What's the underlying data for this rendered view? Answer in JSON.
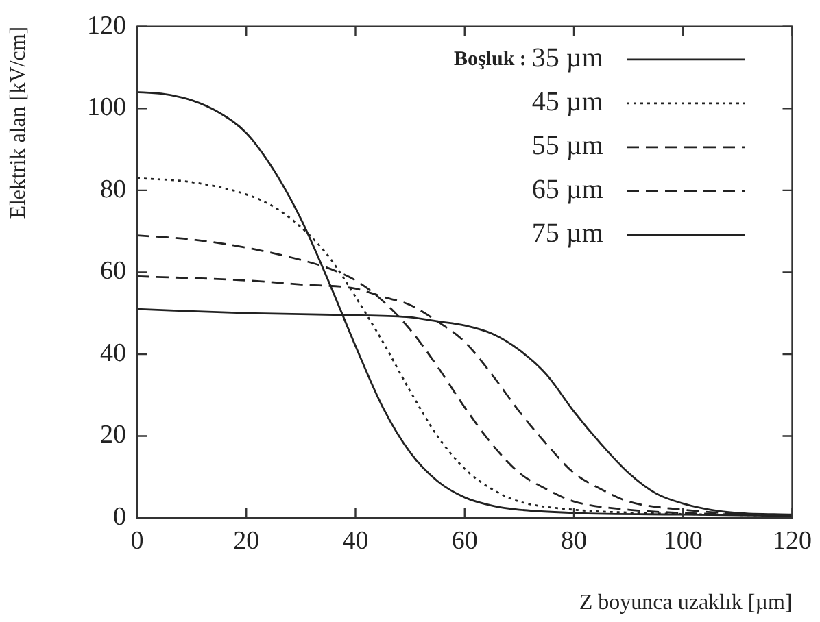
{
  "chart_data": {
    "type": "line",
    "xlabel": "Z boyunca uzaklık [µm]",
    "ylabel": "Elektrik alan [kV/cm]",
    "legend_title": "Boşluk :",
    "legend": "top right",
    "grid": false,
    "marker": "none",
    "xlim": [
      0,
      120
    ],
    "xticks": [
      0,
      20,
      40,
      60,
      80,
      100,
      120
    ],
    "ylim": [
      0,
      120
    ],
    "yticks": [
      0,
      20,
      40,
      60,
      80,
      100,
      120
    ],
    "series": [
      {
        "name": "35 µm",
        "color": "#222222",
        "line_style": "solid",
        "x": [
          0,
          5,
          10,
          15,
          20,
          25,
          30,
          35,
          40,
          45,
          50,
          55,
          60,
          65,
          70,
          80,
          100,
          120
        ],
        "values": [
          104,
          103.5,
          102,
          99,
          94,
          85,
          73,
          58,
          42,
          27,
          16,
          9,
          5,
          3,
          2,
          1.2,
          0.8,
          0.5
        ]
      },
      {
        "name": "45 µm",
        "color": "#222222",
        "line_style": "dotted",
        "x": [
          0,
          10,
          20,
          25,
          30,
          35,
          40,
          45,
          50,
          55,
          60,
          65,
          70,
          80,
          90,
          120
        ],
        "values": [
          83,
          82,
          79,
          76,
          71,
          64,
          54,
          43,
          31,
          20,
          12,
          7,
          4,
          2,
          1.3,
          0.5
        ]
      },
      {
        "name": "55 µm",
        "color": "#222222",
        "line_style": "dashed",
        "x": [
          0,
          10,
          20,
          30,
          35,
          40,
          45,
          50,
          55,
          60,
          65,
          70,
          75,
          80,
          90,
          100,
          120
        ],
        "values": [
          69,
          68,
          66,
          63,
          61,
          58,
          53,
          46,
          37,
          27,
          18,
          11,
          7,
          4,
          2,
          1.2,
          0.5
        ]
      },
      {
        "name": "65 µm",
        "color": "#222222",
        "line_style": "dashed",
        "x": [
          0,
          20,
          30,
          40,
          45,
          50,
          55,
          60,
          65,
          70,
          75,
          80,
          85,
          90,
          100,
          110,
          120
        ],
        "values": [
          59,
          58,
          57,
          56,
          54,
          52,
          48,
          43,
          35,
          26,
          18,
          11,
          7,
          4,
          2,
          1,
          0.5
        ]
      },
      {
        "name": "75 µm",
        "color": "#222222",
        "line_style": "solid",
        "x": [
          0,
          20,
          40,
          50,
          55,
          60,
          65,
          70,
          75,
          80,
          85,
          90,
          95,
          100,
          105,
          110,
          120
        ],
        "values": [
          51,
          50,
          49.5,
          49,
          48,
          47,
          45,
          41,
          35,
          26,
          18,
          11,
          6,
          3.5,
          2,
          1.2,
          0.8
        ]
      }
    ]
  }
}
